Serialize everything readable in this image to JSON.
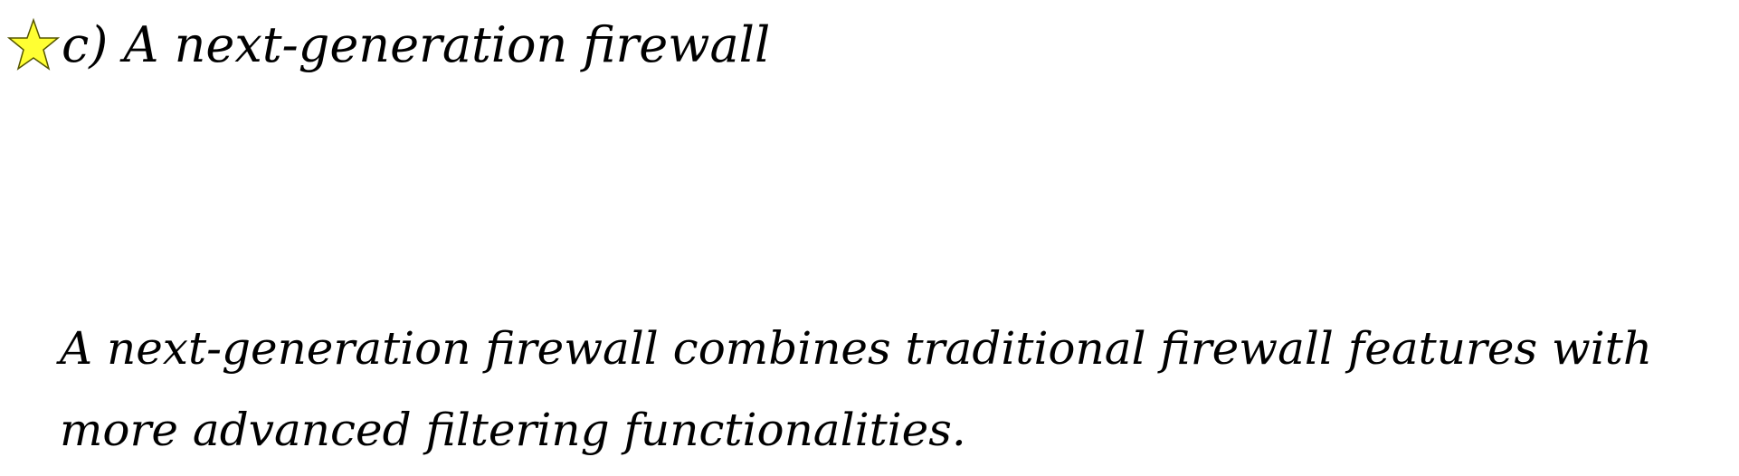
{
  "header": {
    "title": "c) A next-generation firewall",
    "icon": "star-icon",
    "icon_fill": "#ffff33",
    "icon_stroke": "#555500"
  },
  "content": {
    "lines": [
      "A next-generation firewall combines traditional firewall features with",
      "more advanced filtering functionalities."
    ]
  }
}
